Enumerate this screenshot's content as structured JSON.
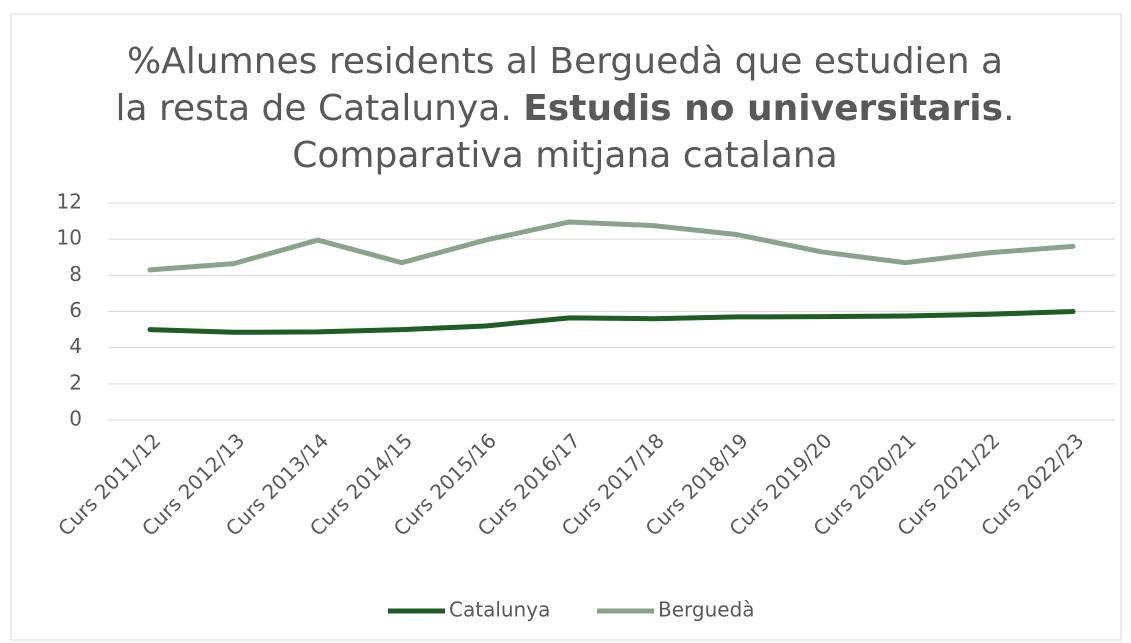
{
  "chart_data": {
    "type": "line",
    "title_parts": [
      {
        "text": "%Alumnes residents al Berguedà que estudien a la resta de Catalunya. ",
        "bold": false
      },
      {
        "text": "Estudis no universitaris",
        "bold": true
      },
      {
        "text": ". Comparativa mitjana catalana",
        "bold": false
      }
    ],
    "categories": [
      "Curs 2011/12",
      "Curs 2012/13",
      "Curs 2013/14",
      "Curs 2014/15",
      "Curs 2015/16",
      "Curs 2016/17",
      "Curs 2017/18",
      "Curs 2018/19",
      "Curs 2019/20",
      "Curs 2020/21",
      "Curs 2021/22",
      "Curs 2022/23"
    ],
    "series": [
      {
        "name": "Catalunya",
        "color": "#1e5e25",
        "values": [
          5.0,
          4.85,
          4.87,
          5.0,
          5.2,
          5.65,
          5.6,
          5.7,
          5.72,
          5.75,
          5.85,
          6.0
        ]
      },
      {
        "name": "Berguedà",
        "color": "#8aa48c",
        "values": [
          8.3,
          8.65,
          9.95,
          8.7,
          9.95,
          10.95,
          10.75,
          10.25,
          9.3,
          8.7,
          9.25,
          9.6
        ]
      }
    ],
    "ylim": [
      0,
      12
    ],
    "yticks": [
      0,
      2,
      4,
      6,
      8,
      10,
      12
    ],
    "grid": true,
    "legend": "bottom"
  }
}
